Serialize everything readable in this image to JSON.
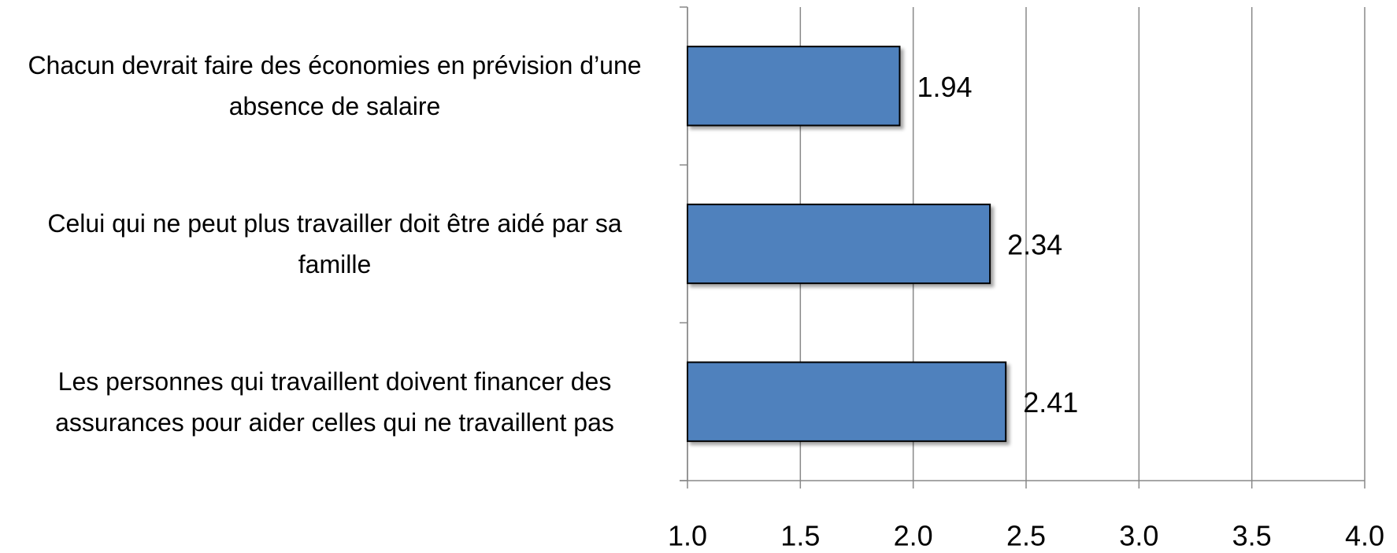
{
  "chart_data": {
    "type": "bar",
    "orientation": "horizontal",
    "categories": [
      "Chacun devrait faire des économies en prévision d’une absence de salaire",
      "Celui qui ne peut plus travailler doit être aidé par sa famille",
      "Les personnes qui travaillent doivent financer des assurances pour aider  celles qui ne travaillent pas"
    ],
    "values": [
      1.94,
      2.34,
      2.41
    ],
    "color": "#4f81bd",
    "xlim": [
      1.0,
      4.0
    ],
    "xticks": [
      {
        "value": 1.0,
        "label": "1.0"
      },
      {
        "value": 1.5,
        "label": "1.5"
      },
      {
        "value": 2.0,
        "label": "2.0"
      },
      {
        "value": 2.5,
        "label": "2.5"
      },
      {
        "value": 3.0,
        "label": "3.0"
      },
      {
        "value": 3.5,
        "label": "3.5"
      },
      {
        "value": 4.0,
        "label": "4.0"
      }
    ],
    "grid": true
  }
}
